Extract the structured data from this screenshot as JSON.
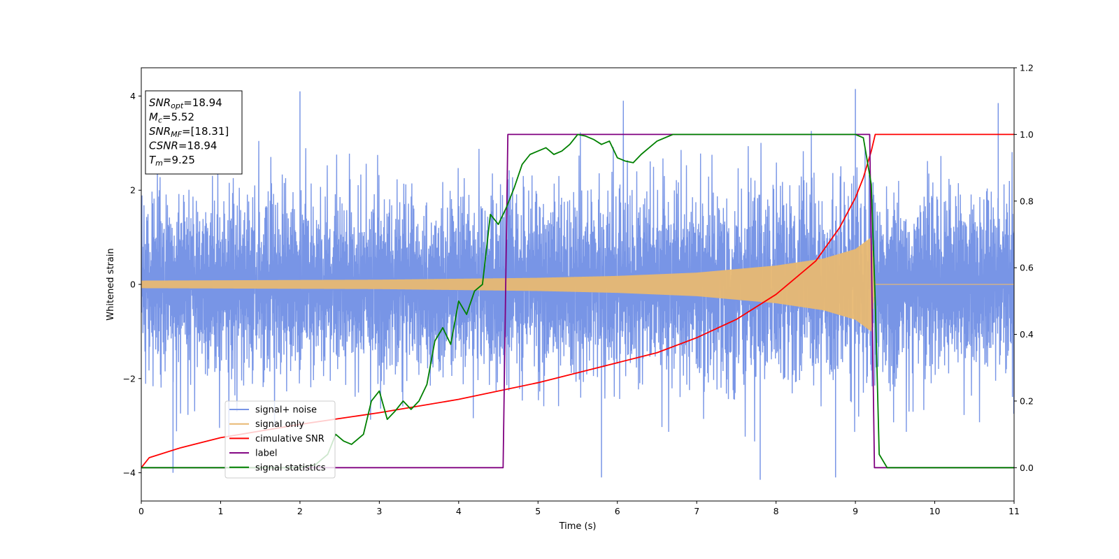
{
  "chart_data": {
    "type": "line",
    "xlabel": "Time (s)",
    "ylabel": "Whitened strain",
    "xlim": [
      0,
      11
    ],
    "ylim": [
      -4.6,
      4.6
    ],
    "y2lim": [
      -0.1,
      1.2
    ],
    "xticks": [
      "0",
      "1",
      "2",
      "3",
      "4",
      "5",
      "6",
      "7",
      "8",
      "9",
      "10",
      "11"
    ],
    "yticks": [
      "−4",
      "−2",
      "0",
      "2",
      "4"
    ],
    "y2ticks": [
      "0.0",
      "0.2",
      "0.4",
      "0.6",
      "0.8",
      "1.0",
      "1.2"
    ],
    "grid": false,
    "legend_position": "lower-left",
    "info_box": {
      "position": "top-left",
      "lines": [
        {
          "sym": "SNR",
          "sub": "opt",
          "value": "=18.94"
        },
        {
          "sym": "M",
          "sub": "c",
          "value": "=5.52"
        },
        {
          "sym": "SNR",
          "sub": "MF",
          "value": "=[18.31]"
        },
        {
          "sym": "CSNR",
          "sub": "",
          "value": "=18.94"
        },
        {
          "sym": "T",
          "sub": "m",
          "value": "=9.25"
        }
      ]
    },
    "series": [
      {
        "name": "signal+ noise",
        "axis": "left",
        "color": "#7895e6",
        "kind": "noisy-signal",
        "noise_envelope": 2.0,
        "peak_values": [
          [
            0.4,
            -4.0
          ],
          [
            2.0,
            4.1
          ],
          [
            5.8,
            -4.1
          ],
          [
            7.8,
            -4.15
          ],
          [
            8.75,
            -4.1
          ],
          [
            9.0,
            4.15
          ],
          [
            10.8,
            3.85
          ]
        ]
      },
      {
        "name": "signal only",
        "axis": "left",
        "color": "#e8b872",
        "kind": "chirp",
        "amplitude_points": [
          [
            0,
            0.08
          ],
          [
            3,
            0.1
          ],
          [
            5,
            0.14
          ],
          [
            6,
            0.18
          ],
          [
            7,
            0.25
          ],
          [
            8,
            0.4
          ],
          [
            8.6,
            0.55
          ],
          [
            9.0,
            0.75
          ],
          [
            9.2,
            1.0
          ],
          [
            9.25,
            0.0
          ]
        ],
        "merger_time": 9.25
      },
      {
        "name": "cimulative SNR",
        "axis": "right",
        "color": "#ff0000",
        "points": [
          [
            0,
            0.0
          ],
          [
            0.1,
            0.03
          ],
          [
            0.5,
            0.06
          ],
          [
            1,
            0.09
          ],
          [
            2,
            0.13
          ],
          [
            3,
            0.165
          ],
          [
            4,
            0.205
          ],
          [
            5,
            0.255
          ],
          [
            6,
            0.315
          ],
          [
            6.5,
            0.345
          ],
          [
            7,
            0.39
          ],
          [
            7.5,
            0.445
          ],
          [
            8,
            0.52
          ],
          [
            8.5,
            0.62
          ],
          [
            8.8,
            0.72
          ],
          [
            9.0,
            0.81
          ],
          [
            9.1,
            0.87
          ],
          [
            9.2,
            0.95
          ],
          [
            9.25,
            1.0
          ],
          [
            11,
            1.0
          ]
        ]
      },
      {
        "name": "label",
        "axis": "right",
        "color": "#800080",
        "points": [
          [
            0,
            0.0
          ],
          [
            4.56,
            0.0
          ],
          [
            4.62,
            1.0
          ],
          [
            9.18,
            1.0
          ],
          [
            9.24,
            0.0
          ],
          [
            11,
            0.0
          ]
        ]
      },
      {
        "name": "signal statistics",
        "axis": "right",
        "color": "#008000",
        "points": [
          [
            0,
            0.0
          ],
          [
            2.0,
            0.0
          ],
          [
            2.2,
            0.01
          ],
          [
            2.35,
            0.04
          ],
          [
            2.45,
            0.1
          ],
          [
            2.55,
            0.08
          ],
          [
            2.65,
            0.07
          ],
          [
            2.8,
            0.1
          ],
          [
            2.9,
            0.2
          ],
          [
            3.0,
            0.23
          ],
          [
            3.1,
            0.145
          ],
          [
            3.2,
            0.17
          ],
          [
            3.3,
            0.2
          ],
          [
            3.4,
            0.175
          ],
          [
            3.5,
            0.2
          ],
          [
            3.6,
            0.25
          ],
          [
            3.7,
            0.38
          ],
          [
            3.8,
            0.42
          ],
          [
            3.9,
            0.37
          ],
          [
            4.0,
            0.5
          ],
          [
            4.1,
            0.46
          ],
          [
            4.2,
            0.53
          ],
          [
            4.3,
            0.55
          ],
          [
            4.4,
            0.76
          ],
          [
            4.5,
            0.73
          ],
          [
            4.6,
            0.78
          ],
          [
            4.7,
            0.84
          ],
          [
            4.8,
            0.91
          ],
          [
            4.9,
            0.94
          ],
          [
            5.0,
            0.95
          ],
          [
            5.1,
            0.96
          ],
          [
            5.2,
            0.94
          ],
          [
            5.3,
            0.95
          ],
          [
            5.4,
            0.97
          ],
          [
            5.5,
            1.0
          ],
          [
            5.6,
            0.995
          ],
          [
            5.7,
            0.985
          ],
          [
            5.8,
            0.97
          ],
          [
            5.9,
            0.98
          ],
          [
            6.0,
            0.93
          ],
          [
            6.1,
            0.92
          ],
          [
            6.2,
            0.915
          ],
          [
            6.3,
            0.94
          ],
          [
            6.4,
            0.96
          ],
          [
            6.5,
            0.98
          ],
          [
            6.7,
            1.0
          ],
          [
            7.0,
            1.0
          ],
          [
            8.0,
            1.0
          ],
          [
            9.0,
            1.0
          ],
          [
            9.1,
            0.99
          ],
          [
            9.2,
            0.85
          ],
          [
            9.25,
            0.5
          ],
          [
            9.3,
            0.04
          ],
          [
            9.4,
            0.0
          ],
          [
            11,
            0.0
          ]
        ]
      }
    ]
  }
}
